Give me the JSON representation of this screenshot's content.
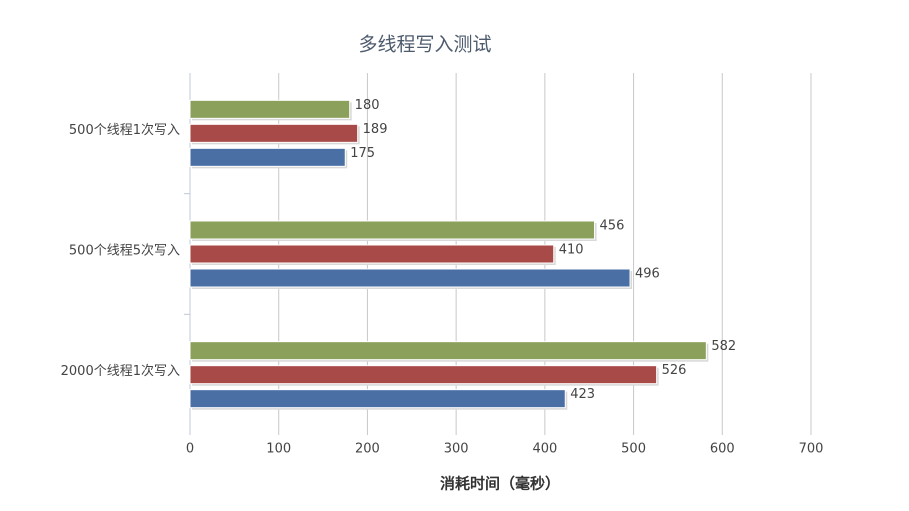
{
  "chart_data": {
    "type": "bar",
    "orientation": "horizontal",
    "title": "多线程写入测试",
    "x_label": "消耗时间（毫秒）",
    "categories": [
      "500个线程1次写入",
      "500个线程5次写入",
      "2000个线程1次写入"
    ],
    "series": [
      {
        "color": "#8ba05a",
        "values": [
          180,
          456,
          582
        ]
      },
      {
        "color": "#a84a47",
        "values": [
          189,
          410,
          526
        ]
      },
      {
        "color": "#4a6fa5",
        "values": [
          175,
          496,
          423
        ]
      }
    ],
    "xlim": [
      0,
      700
    ],
    "xticks": [
      0,
      100,
      200,
      300,
      400,
      500,
      600,
      700
    ],
    "grid": true
  }
}
